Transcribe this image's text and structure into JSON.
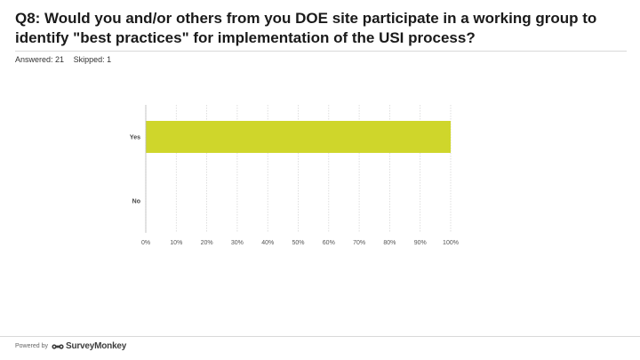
{
  "question": {
    "title": "Q8: Would you and/or others from you DOE site participate in a working group to identify \"best practices\" for implementation of the USI process?"
  },
  "stats": {
    "answered": "Answered: 21",
    "skipped": "Skipped: 1"
  },
  "footer": {
    "powered_by": "Powered by",
    "brand": "SurveyMonkey",
    "brand_icon": "surveymonkey-logo-icon"
  },
  "chart_data": {
    "type": "bar",
    "orientation": "horizontal",
    "categories": [
      "Yes",
      "No"
    ],
    "values": [
      100,
      0
    ],
    "xlim": [
      0,
      100
    ],
    "xticks": [
      "0%",
      "10%",
      "20%",
      "30%",
      "40%",
      "50%",
      "60%",
      "70%",
      "80%",
      "90%",
      "100%"
    ],
    "bar_color": "#cfd62b",
    "grid": "vertical-dotted"
  }
}
